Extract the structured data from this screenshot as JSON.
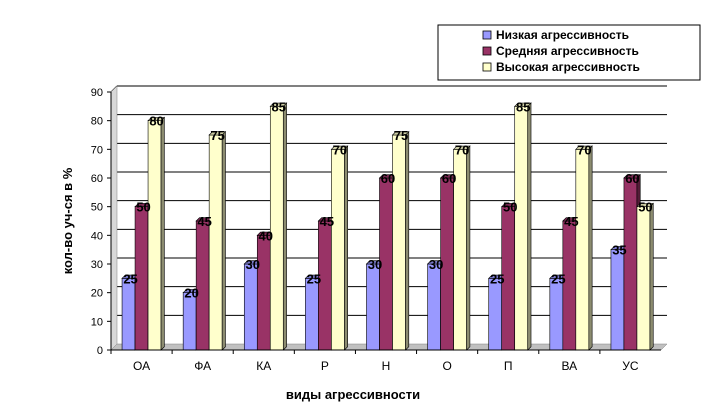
{
  "chart_data": {
    "type": "bar",
    "categories": [
      "ОА",
      "ФА",
      "КА",
      "Р",
      "Н",
      "О",
      "П",
      "ВА",
      "УС"
    ],
    "series": [
      {
        "name": "Низкая агрессивность",
        "values": [
          25,
          20,
          30,
          25,
          30,
          30,
          25,
          25,
          35
        ],
        "color": "#9999ff"
      },
      {
        "name": "Средняя агрессивность",
        "values": [
          50,
          45,
          40,
          45,
          60,
          60,
          50,
          45,
          60
        ],
        "color": "#993366"
      },
      {
        "name": "Высокая агрессивность",
        "values": [
          80,
          75,
          85,
          70,
          75,
          70,
          85,
          70,
          50
        ],
        "color": "#ffffcc"
      }
    ],
    "xlabel": "виды агрессивности",
    "ylabel": "кол-во уч-ся в %",
    "ylim": [
      0,
      90
    ],
    "yticks": [
      "0",
      "10",
      "20",
      "30",
      "40",
      "50",
      "60",
      "70",
      "80",
      "90"
    ],
    "grid": true,
    "legend_position": "top-right",
    "data_labels": true
  }
}
